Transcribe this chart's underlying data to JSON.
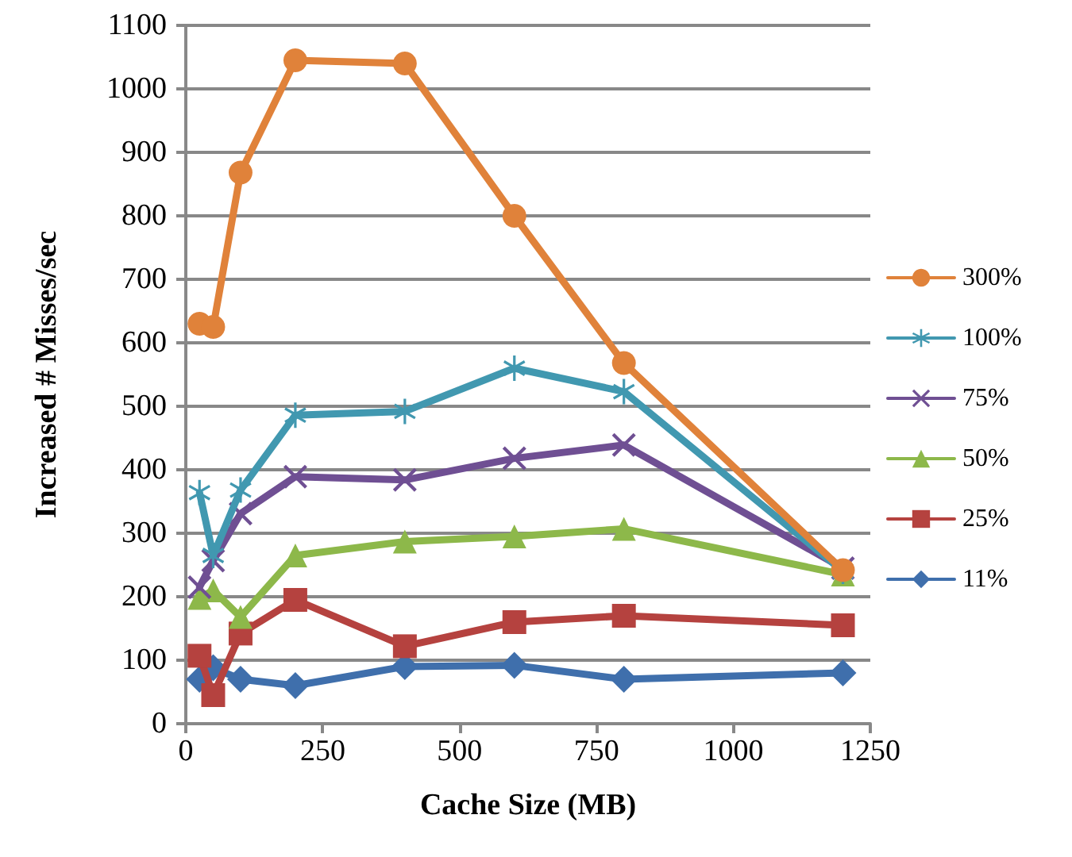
{
  "chart_data": {
    "type": "line",
    "xlabel": "Cache Size (MB)",
    "ylabel": "Increased # Misses/sec",
    "x": [
      25,
      50,
      100,
      200,
      400,
      600,
      800,
      1200
    ],
    "xlim": [
      0,
      1250
    ],
    "xticks": [
      0,
      250,
      500,
      750,
      1000,
      1250
    ],
    "ylim": [
      0,
      1100
    ],
    "yticks": [
      0,
      100,
      200,
      300,
      400,
      500,
      600,
      700,
      800,
      900,
      1000,
      1100
    ],
    "grid": "y",
    "legend": "right",
    "series": [
      {
        "name": "300%",
        "color": "#e0823a",
        "marker": "circle",
        "values": [
          630,
          625,
          868,
          1045,
          1040,
          800,
          568,
          242
        ]
      },
      {
        "name": "100%",
        "color": "#4198b0",
        "marker": "star",
        "values": [
          364,
          265,
          368,
          486,
          492,
          560,
          523,
          240
        ]
      },
      {
        "name": "75%",
        "color": "#6f4f93",
        "marker": "cross",
        "values": [
          215,
          257,
          331,
          389,
          384,
          418,
          439,
          245
        ]
      },
      {
        "name": "50%",
        "color": "#8db84a",
        "marker": "triangle",
        "values": [
          198,
          210,
          168,
          265,
          287,
          295,
          307,
          235
        ]
      },
      {
        "name": "25%",
        "color": "#b5423f",
        "marker": "square",
        "values": [
          107,
          45,
          142,
          195,
          122,
          160,
          170,
          155
        ]
      },
      {
        "name": "11%",
        "color": "#3f6fac",
        "marker": "diamond",
        "values": [
          70,
          88,
          70,
          60,
          90,
          92,
          70,
          80
        ]
      }
    ]
  }
}
